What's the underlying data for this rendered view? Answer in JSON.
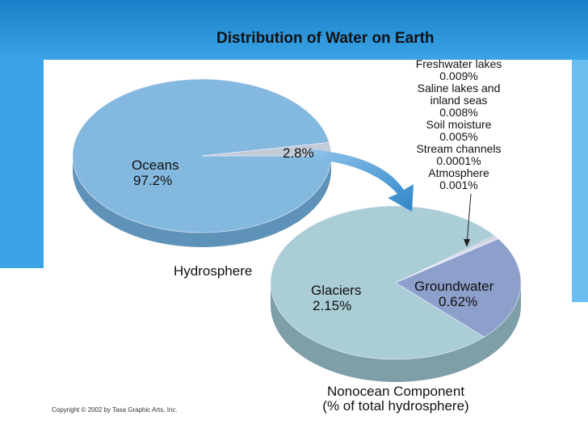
{
  "title": "Distribution of Water on Earth",
  "copyright": "Copyright © 2002 by Tasa Graphic Arts, Inc.",
  "chart_data": [
    {
      "type": "pie",
      "title": "Hydrosphere",
      "categories": [
        "Oceans",
        null
      ],
      "values": [
        97.2,
        2.8
      ],
      "value_labels": [
        "97.2%",
        "2.8%"
      ],
      "colors": [
        "#84b9df",
        "#c3cbd8"
      ]
    },
    {
      "type": "pie",
      "title": "Nonocean Component",
      "subtitle": "(% of total hydrosphere)",
      "categories": [
        "Glaciers",
        "Freshwater lakes",
        "Saline lakes and inland seas",
        "Soil moisture",
        "Stream channels",
        "Atmosphere",
        "Groundwater"
      ],
      "values": [
        2.15,
        0.009,
        0.008,
        0.005,
        0.0001,
        0.001,
        0.62
      ],
      "value_labels": [
        "2.15%",
        "0.009%",
        "0.008%",
        "0.005%",
        "0.0001%",
        "0.001%",
        "0.62%"
      ],
      "colors": [
        "#abcdd6",
        "#c3c9d3",
        "#c3c9d3",
        "#c3c9d3",
        "#c3c9d3",
        "#c3c9d3",
        "#8d9fcb"
      ]
    }
  ]
}
